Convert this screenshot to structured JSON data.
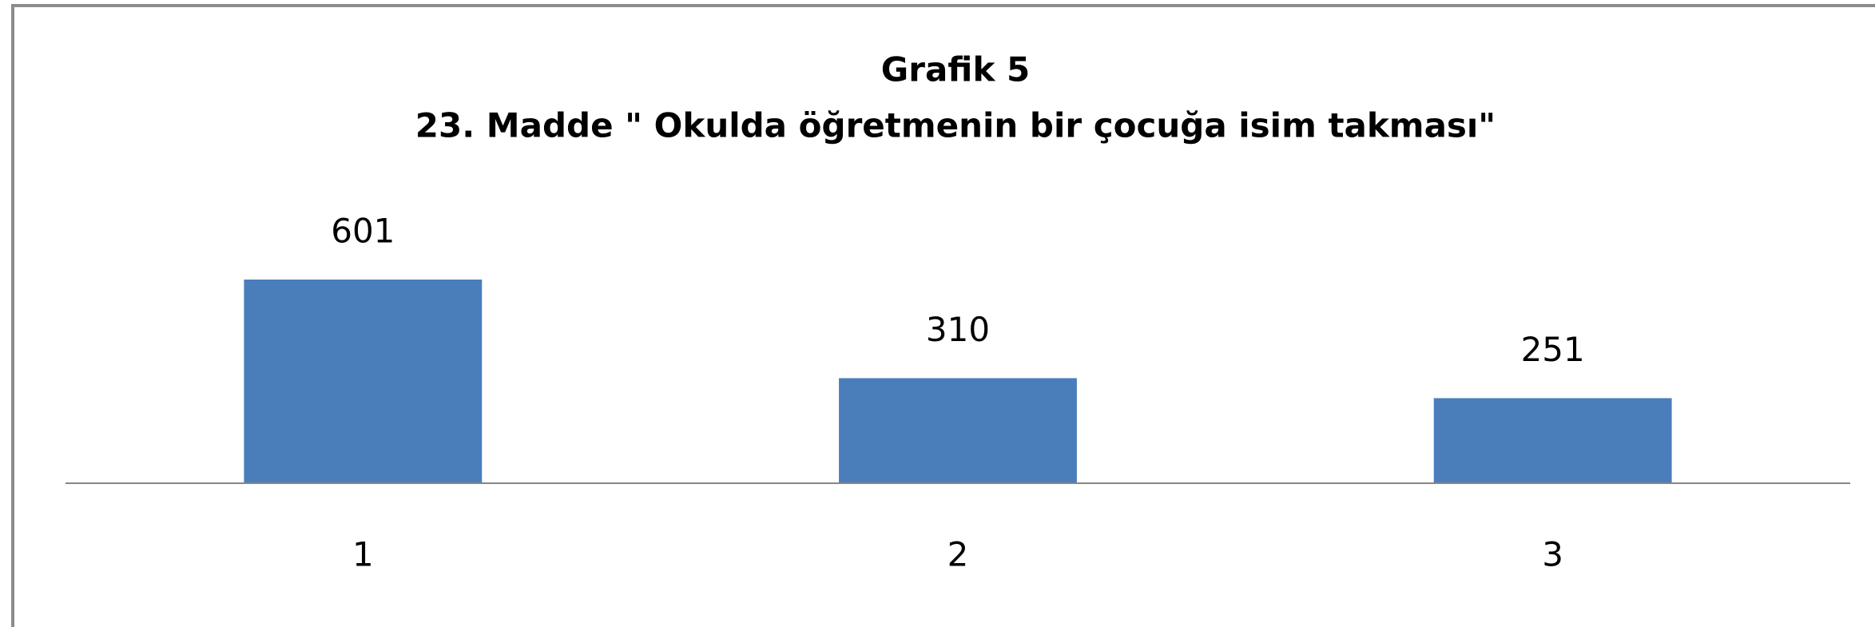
{
  "chart_data": {
    "type": "bar",
    "title": "Grafik 5",
    "subtitle": "23. Madde \" Okulda öğretmenin bir çocuğa isim takması\"",
    "categories": [
      "1",
      "2",
      "3"
    ],
    "values": [
      601,
      310,
      251
    ],
    "color": "#4a7ebb",
    "ylim": [
      0,
      700
    ],
    "grid": false
  }
}
